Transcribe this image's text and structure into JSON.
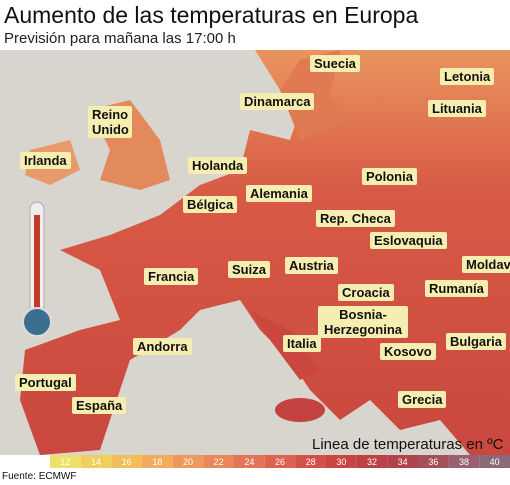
{
  "header": {
    "title": "Aumento de las temperaturas en Europa",
    "subtitle": "Previsión para mañana las 17:00 h"
  },
  "labels": [
    "Suecia",
    "Letonia",
    "Dinamarca",
    "Lituania",
    "Reino Unido",
    "Irlanda",
    "Holanda",
    "Polonia",
    "Alemania",
    "Bélgica",
    "Rep. Checa",
    "Eslovaquia",
    "Moldav",
    "Francia",
    "Suiza",
    "Austria",
    "Rumanía",
    "Croacia",
    "Bosnia-Herzegonina",
    "Andorra",
    "Italia",
    "Bulgaria",
    "Kosovo",
    "Portugal",
    "España",
    "Grecia"
  ],
  "legend": {
    "title": "Linea de temperaturas en ºC",
    "ticks": [
      12,
      14,
      16,
      18,
      20,
      22,
      24,
      26,
      28,
      30,
      32,
      34,
      36,
      38,
      40
    ],
    "colors": [
      "#efe06a",
      "#f0cf5e",
      "#f2be5a",
      "#f0ab5c",
      "#ee985c",
      "#e9865a",
      "#e47456",
      "#dd6250",
      "#d4504a",
      "#c94545",
      "#bd4143",
      "#b0434c",
      "#a4505a",
      "#986070",
      "#8a6a78"
    ]
  },
  "source": "Fuente: ECMWF"
}
